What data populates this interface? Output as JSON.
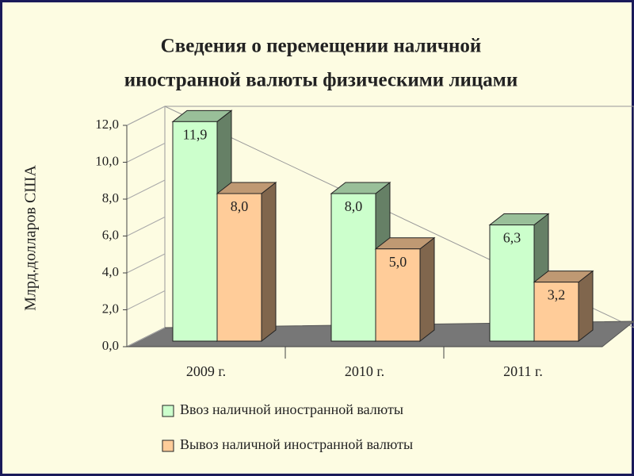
{
  "chart_data": {
    "type": "bar3d",
    "title": [
      "Сведения о перемещении наличной",
      "иностранной валюты физическими лицами"
    ],
    "y_label": "Млрд.долларов США",
    "categories": [
      "2009 г.",
      "2010 г.",
      "2011 г."
    ],
    "series": [
      {
        "name": "Ввоз наличной иностранной валюты",
        "color": "#ccffcc",
        "values": [
          11.9,
          8.0,
          6.3
        ],
        "value_labels": [
          "11,9",
          "8,0",
          "6,3"
        ]
      },
      {
        "name": "Вывоз наличной иностранной валюты",
        "color": "#ffcc99",
        "values": [
          8.0,
          5.0,
          3.2
        ],
        "value_labels": [
          "8,0",
          "5,0",
          "3,2"
        ]
      }
    ],
    "ylim": [
      0,
      12
    ],
    "yticks": [
      {
        "value": 0,
        "label": "0,0"
      },
      {
        "value": 2,
        "label": "2,0"
      },
      {
        "value": 4,
        "label": "4,0"
      },
      {
        "value": 6,
        "label": "6,0"
      },
      {
        "value": 8,
        "label": "8,0"
      },
      {
        "value": 10,
        "label": "10,0"
      },
      {
        "value": 12,
        "label": "12,0"
      }
    ],
    "legend": "bottom"
  }
}
